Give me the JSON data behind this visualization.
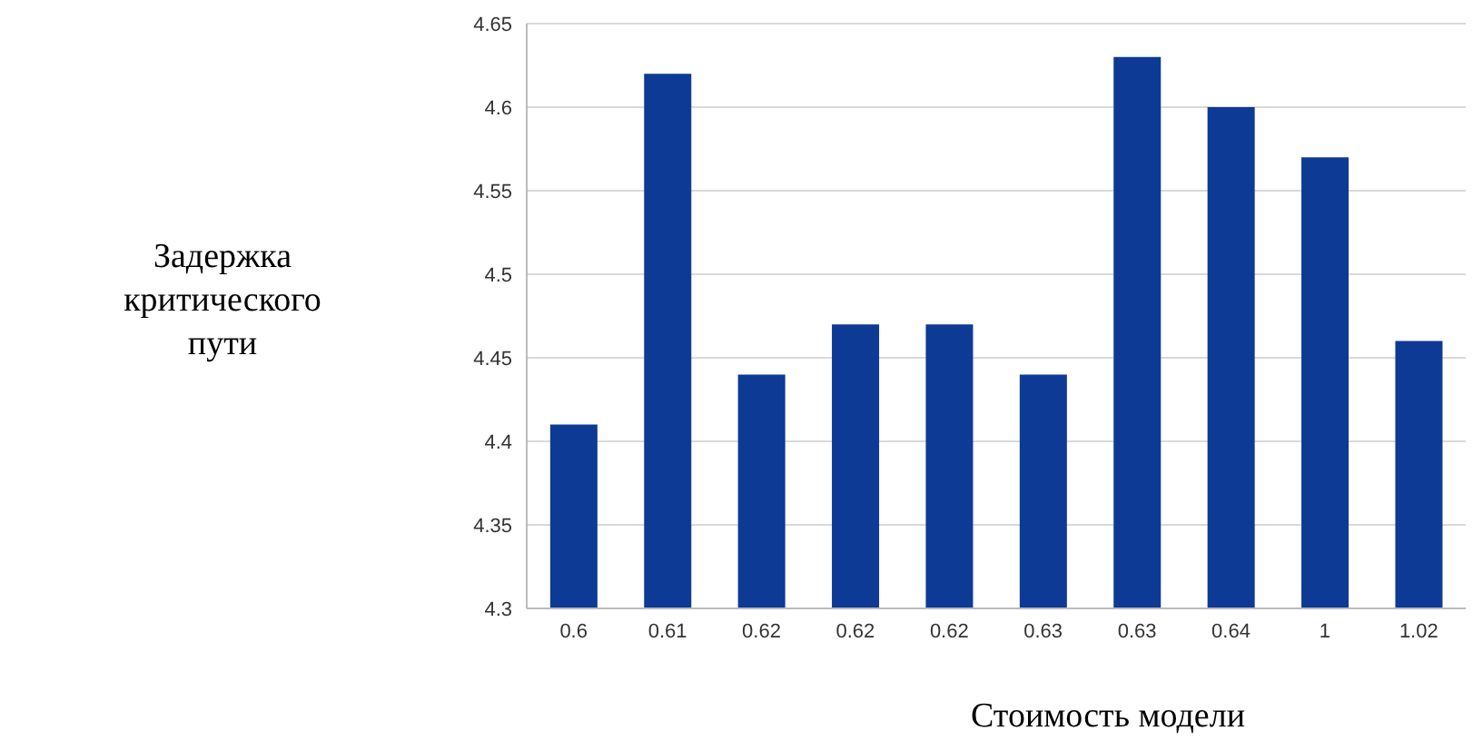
{
  "chart_data": {
    "type": "bar",
    "xlabel": "Стоимость модели",
    "ylabel": "Задержка критического пути",
    "categories": [
      "0.6",
      "0.61",
      "0.62",
      "0.62",
      "0.62",
      "0.63",
      "0.63",
      "0.64",
      "1",
      "1.02"
    ],
    "values": [
      4.41,
      4.62,
      4.44,
      4.47,
      4.47,
      4.44,
      4.63,
      4.6,
      4.57,
      4.46
    ],
    "color": "#0d3a94",
    "ylim": [
      4.3,
      4.65
    ],
    "yticks": [
      4.3,
      4.35,
      4.4,
      4.45,
      4.5,
      4.55,
      4.6,
      4.65
    ],
    "grid": "y"
  }
}
